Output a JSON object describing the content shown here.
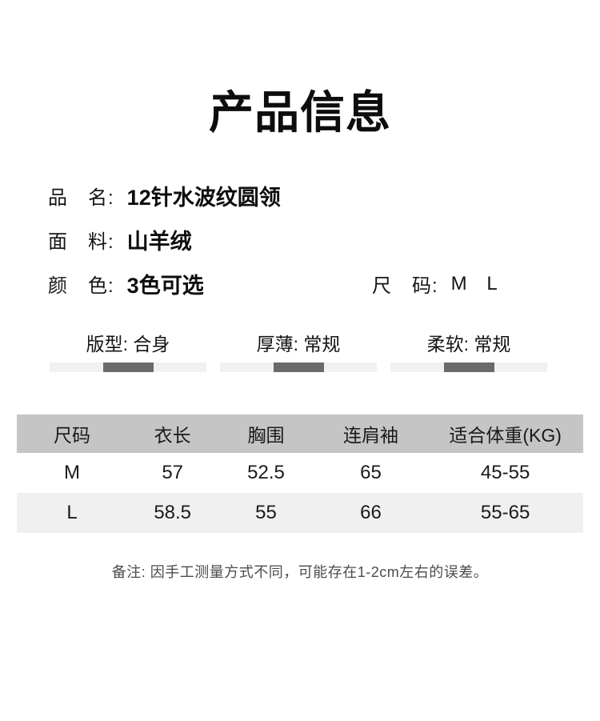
{
  "title": "产品信息",
  "info": {
    "rows": [
      {
        "label": "品　名:",
        "value": "12针水波纹圆领"
      },
      {
        "label": "面　料:",
        "value": "山羊绒"
      },
      {
        "label": "颜　色:",
        "value": "3色可选"
      }
    ],
    "size": {
      "label": "尺　码:",
      "value": "M L"
    }
  },
  "sliders": [
    {
      "label": "版型: 合身",
      "level_pct_left": 34,
      "level_pct_width": 32.5
    },
    {
      "label": "厚薄: 常规",
      "level_pct_left": 34,
      "level_pct_width": 32.5
    },
    {
      "label": "柔软: 常规",
      "level_pct_left": 34,
      "level_pct_width": 32.5
    }
  ],
  "size_table": {
    "headers": [
      "尺码",
      "衣长",
      "胸围",
      "连肩袖",
      "适合体重(KG)"
    ],
    "rows": [
      [
        "M",
        "57",
        "52.5",
        "65",
        "45-55"
      ],
      [
        "L",
        "58.5",
        "55",
        "66",
        "55-65"
      ]
    ]
  },
  "note": "备注: 因手工测量方式不同，可能存在1-2cm左右的误差。",
  "colors": {
    "text": "#111111",
    "note_text": "#4c4c4c",
    "table_header_bg": "#c5c5c5",
    "table_alt_row_bg": "#f0f0f0",
    "slider_track": "#f1f1f1",
    "slider_thumb": "#6b6b6b"
  }
}
